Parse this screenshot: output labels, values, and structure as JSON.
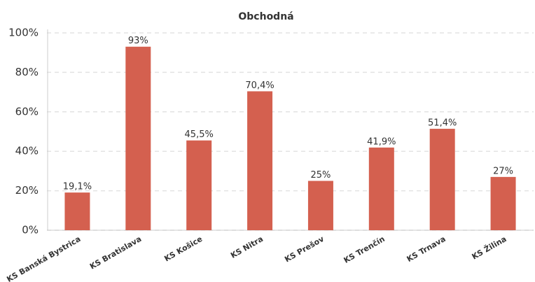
{
  "chart_data": {
    "type": "bar",
    "title": "Obchodná",
    "categories": [
      "KS Banská Bystrica",
      "KS Bratislava",
      "KS Košice",
      "KS Nitra",
      "KS Prešov",
      "KS Trenčín",
      "KS Trnava",
      "KS Žilina"
    ],
    "values": [
      19.1,
      93,
      45.5,
      70.4,
      25,
      41.9,
      51.4,
      27
    ],
    "value_labels": [
      "19,1%",
      "93%",
      "45,5%",
      "70,4%",
      "25%",
      "41,9%",
      "51,4%",
      "27%"
    ],
    "color": "#d4604f",
    "ylim": [
      0,
      100
    ],
    "yticks": [
      {
        "value": 0,
        "label": "0%"
      },
      {
        "value": 20,
        "label": "20%"
      },
      {
        "value": 40,
        "label": "40%"
      },
      {
        "value": 60,
        "label": "60%"
      },
      {
        "value": 80,
        "label": "80%"
      },
      {
        "value": 100,
        "label": "100%"
      }
    ],
    "grid": true
  }
}
